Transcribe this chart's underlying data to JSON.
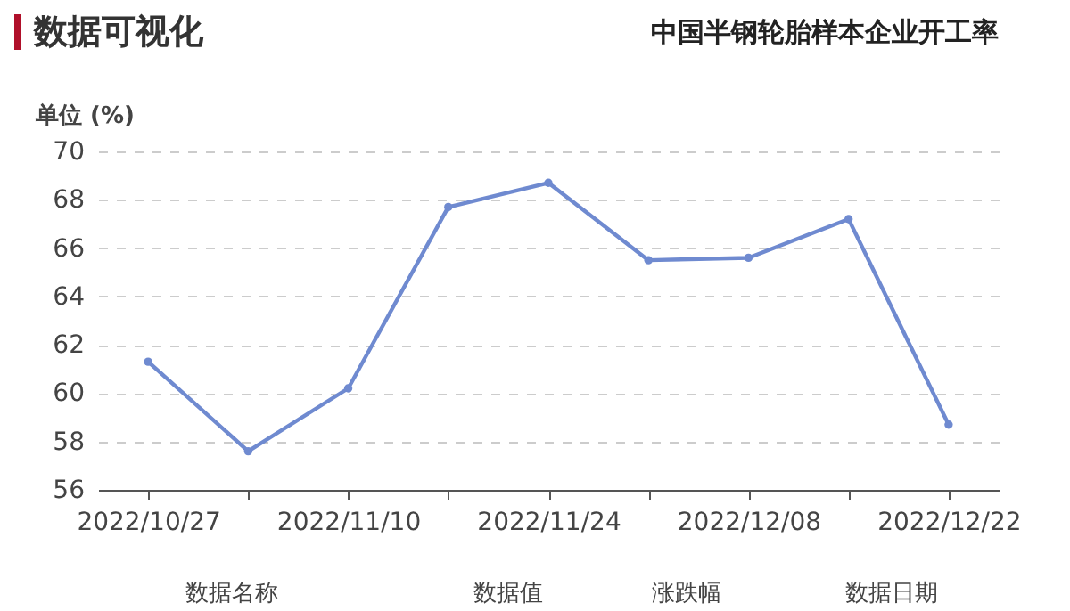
{
  "chart_data": {
    "type": "line",
    "title": "数据可视化",
    "subtitle": "中国半钢轮胎样本企业开工率",
    "ylabel": "单位 (%)",
    "categories": [
      "2022/10/27",
      null,
      "2022/11/10",
      null,
      "2022/11/24",
      null,
      "2022/12/08",
      null,
      "2022/12/22"
    ],
    "series": [
      {
        "color": "#6f8ad0",
        "values": [
          61.3,
          57.6,
          60.2,
          67.7,
          68.7,
          65.5,
          65.6,
          67.2,
          58.7
        ]
      }
    ],
    "ylim": [
      56,
      70
    ],
    "yticks": [
      56,
      58,
      60,
      62,
      64,
      66,
      68,
      70
    ],
    "grid": "y",
    "marker": "circle",
    "line_style": "solid",
    "annotations": [
      "数据名称",
      "数据值",
      "涨跌幅",
      "数据日期"
    ]
  }
}
